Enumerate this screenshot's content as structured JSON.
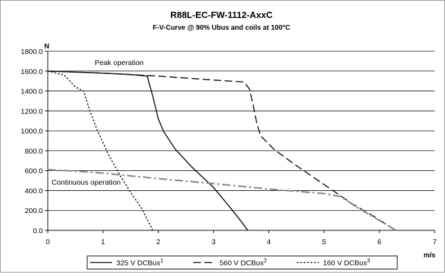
{
  "chart_data": {
    "type": "line",
    "title": "R88L-EC-FW-1112-AxxC",
    "subtitle": "F-V-Curve @ 90% Ubus and coils at 100°C",
    "ylabel": "N",
    "xlabel": "m/s",
    "xlim": [
      0,
      7
    ],
    "ylim": [
      0,
      1800
    ],
    "x_ticks": [
      0,
      1,
      2,
      3,
      4,
      5,
      6,
      7
    ],
    "y_ticks": [
      0,
      200,
      400,
      600,
      800,
      1000,
      1200,
      1400,
      1600,
      1800
    ],
    "x_tick_labels": [
      "0",
      "1",
      "2",
      "3",
      "4",
      "5",
      "6",
      "7"
    ],
    "y_tick_labels": [
      "0.0",
      "200.0",
      "400.0",
      "600.0",
      "800.0",
      "1000.0",
      "1200.0",
      "1400.0",
      "1600.0",
      "1800.0"
    ],
    "grid": "horizontal",
    "legend_position": "bottom",
    "annotations": [
      {
        "text": "Peak operation",
        "x": 0.85,
        "y": 1660
      },
      {
        "text": "Continuous operation",
        "x": 0.07,
        "y": 460
      }
    ],
    "series": [
      {
        "name": "325 V DCBus",
        "superscript": "1",
        "style": "solid",
        "color": "#111111",
        "x": [
          0,
          0.5,
          1.0,
          1.5,
          1.8,
          1.9,
          2.0,
          2.1,
          2.3,
          2.6,
          3.0,
          3.3,
          3.5,
          3.62
        ],
        "y": [
          1600,
          1590,
          1580,
          1565,
          1550,
          1350,
          1120,
          990,
          820,
          640,
          430,
          230,
          90,
          0
        ]
      },
      {
        "name": "560 V DCBus",
        "superscript": "2",
        "style": "dashed",
        "color": "#111111",
        "x": [
          0,
          1.0,
          2.0,
          3.0,
          3.55,
          3.65,
          3.72,
          3.78,
          3.85,
          4.1,
          4.5,
          5.0,
          5.5,
          5.9,
          6.3
        ],
        "y": [
          1600,
          1580,
          1550,
          1510,
          1490,
          1420,
          1250,
          1080,
          950,
          810,
          650,
          460,
          270,
          140,
          0
        ]
      },
      {
        "name": "160 V DCBus",
        "superscript": "3",
        "style": "dotted",
        "color": "#111111",
        "x": [
          0,
          0.3,
          0.5,
          0.65,
          0.75,
          0.9,
          1.1,
          1.3,
          1.5,
          1.7,
          1.8,
          1.9
        ],
        "y": [
          1600,
          1560,
          1440,
          1400,
          1220,
          1000,
          760,
          560,
          380,
          220,
          110,
          0
        ]
      },
      {
        "name": "Continuous operation",
        "style": "dash-dot",
        "color": "#888888",
        "x": [
          0,
          0.5,
          1.0,
          2.0,
          3.0,
          4.0,
          5.0,
          5.3,
          5.6,
          6.0,
          6.3
        ],
        "y": [
          610,
          595,
          575,
          520,
          470,
          415,
          370,
          340,
          230,
          100,
          0
        ]
      }
    ]
  }
}
